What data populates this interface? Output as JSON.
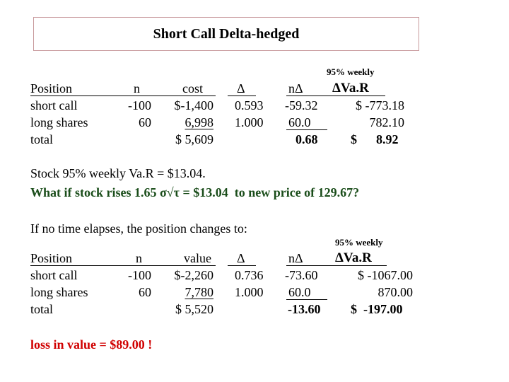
{
  "title": "Short Call Delta-hedged",
  "table1": {
    "note": "95% weekly",
    "headers": {
      "position": "Position",
      "n": "n",
      "cost": "cost",
      "delta": "Δ",
      "ndelta": "nΔ",
      "dvar": "ΔVa.R"
    },
    "rows": [
      {
        "position": "short call",
        "n": "-100",
        "cost": "$-1,400",
        "delta": "0.593",
        "ndelta": "-59.32",
        "dvar": "$ -773.18"
      },
      {
        "position": "long shares",
        "n": "60",
        "cost": "6,998",
        "delta": "1.000",
        "ndelta": "60.0",
        "dvar": "782.10"
      },
      {
        "position": "total",
        "n": "",
        "cost": "$ 5,609",
        "delta": "",
        "ndelta": "0.68",
        "dvar": "$      8.92"
      }
    ]
  },
  "text": {
    "stock_var": "Stock 95% weekly Va.R = $13.04.",
    "what_if": "What if stock rises 1.65 σ√τ = $13.04  to new price of 129.67?",
    "if_no_time": "If no time elapses, the position changes to:",
    "loss": "loss in value = $89.00 !"
  },
  "table2": {
    "note": "95% weekly",
    "headers": {
      "position": "Position",
      "n": "n",
      "value": "value",
      "delta": "Δ",
      "ndelta": "nΔ",
      "dvar": "ΔVa.R"
    },
    "rows": [
      {
        "position": "short call",
        "n": "-100",
        "value": "$-2,260",
        "delta": "0.736",
        "ndelta": "-73.60",
        "dvar": "$ -1067.00"
      },
      {
        "position": "long shares",
        "n": "60",
        "value": "7,780",
        "delta": "1.000",
        "ndelta": "60.0",
        "dvar": "870.00"
      },
      {
        "position": "total",
        "n": "",
        "value": "$ 5,520",
        "delta": "",
        "ndelta": "-13.60",
        "dvar": "$  -197.00"
      }
    ]
  },
  "colors": {
    "title_border": "#c8999c",
    "green_text": "#1a4d1a",
    "red_text": "#d00000"
  }
}
